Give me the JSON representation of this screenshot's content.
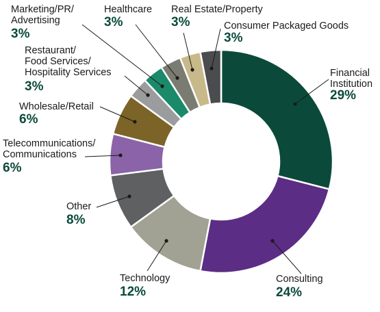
{
  "chart_data": {
    "type": "pie",
    "title": "",
    "categories": [
      "Financial Institution",
      "Consulting",
      "Technology",
      "Other",
      "Telecommunications/ Communications",
      "Wholesale/Retail",
      "Restaurant/ Food Services/ Hospitality Services",
      "Marketing/PR/ Advertising",
      "Healthcare",
      "Real Estate/Property",
      "Consumer Packaged Goods"
    ],
    "values": [
      29,
      24,
      12,
      8,
      6,
      6,
      3,
      3,
      3,
      3,
      3
    ],
    "slices": [
      {
        "label": "Financial Institution",
        "label_lines": [
          "Financial",
          "Institution"
        ],
        "value": 29,
        "value_label": "29%",
        "color": "#0b4a3b"
      },
      {
        "label": "Consulting",
        "label_lines": [
          "Consulting"
        ],
        "value": 24,
        "value_label": "24%",
        "color": "#5b2d84"
      },
      {
        "label": "Technology",
        "label_lines": [
          "Technology"
        ],
        "value": 12,
        "value_label": "12%",
        "color": "#a1a194"
      },
      {
        "label": "Other",
        "label_lines": [
          "Other"
        ],
        "value": 8,
        "value_label": "8%",
        "color": "#5e6062"
      },
      {
        "label": "Telecommunications/ Communications",
        "label_lines": [
          "Telecommunications/",
          "Communications"
        ],
        "value": 6,
        "value_label": "6%",
        "color": "#8a63a8"
      },
      {
        "label": "Wholesale/Retail",
        "label_lines": [
          "Wholesale/Retail"
        ],
        "value": 6,
        "value_label": "6%",
        "color": "#7c6327"
      },
      {
        "label": "Restaurant/ Food Services/ Hospitality Services",
        "label_lines": [
          "Restaurant/",
          "Food Services/",
          "Hospitality Services"
        ],
        "value": 3,
        "value_label": "3%",
        "color": "#9a9c9e"
      },
      {
        "label": "Marketing/PR/ Advertising",
        "label_lines": [
          "Marketing/PR/",
          "Advertising"
        ],
        "value": 3,
        "value_label": "3%",
        "color": "#1a8a6a"
      },
      {
        "label": "Healthcare",
        "label_lines": [
          "Healthcare"
        ],
        "value": 3,
        "value_label": "3%",
        "color": "#7a7c72"
      },
      {
        "label": "Real Estate/Property",
        "label_lines": [
          "Real Estate/Property"
        ],
        "value": 3,
        "value_label": "3%",
        "color": "#c8b98a"
      },
      {
        "label": "Consumer Packaged Goods",
        "label_lines": [
          "Consumer Packaged Goods"
        ],
        "value": 3,
        "value_label": "3%",
        "color": "#4a4c4e"
      }
    ],
    "donut": true,
    "legend": "none",
    "value_label_color": "#0b4a3b"
  }
}
